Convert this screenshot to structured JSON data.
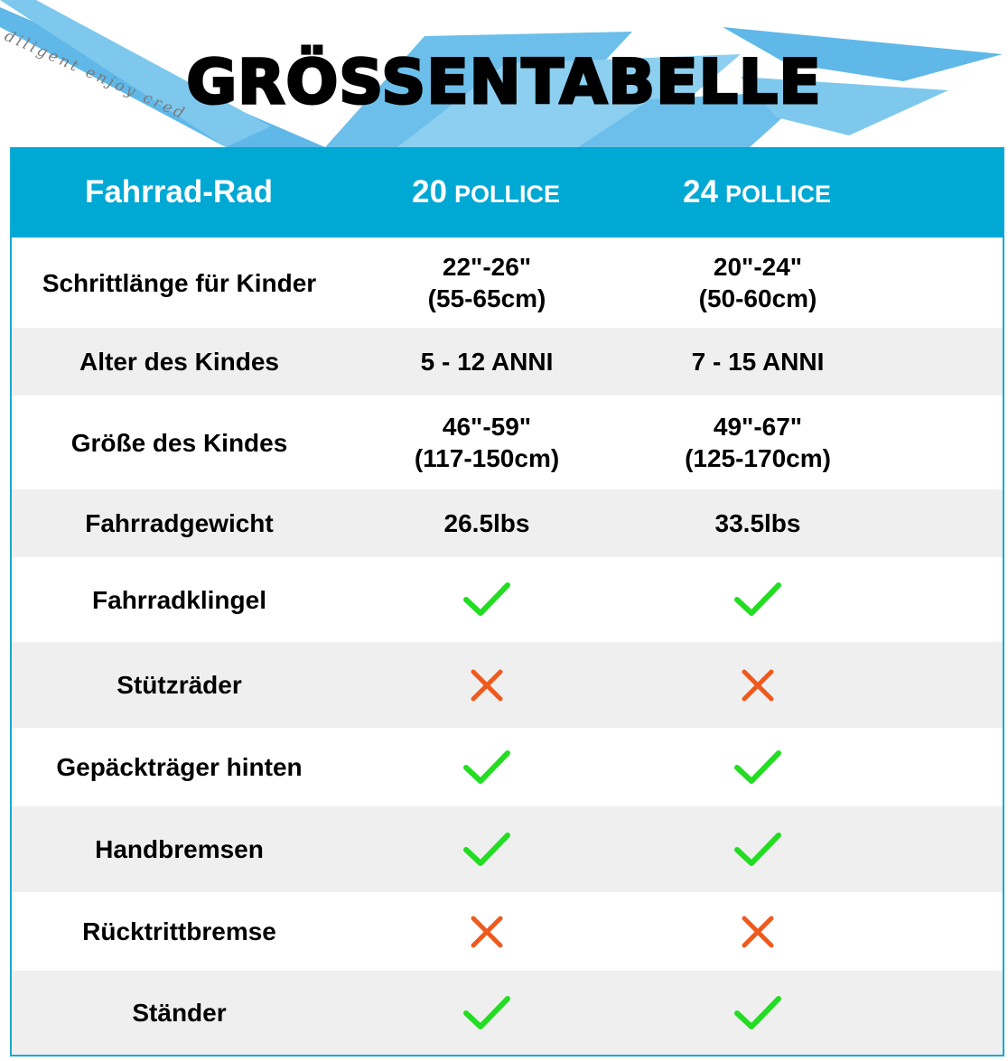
{
  "header": {
    "title": "GRÖSSENTABELLE",
    "tagline": "diligent enjoy cred"
  },
  "colors": {
    "accent": "#00a8d4",
    "check": "#22dd22",
    "cross": "#ee5a1e",
    "stripe": "#efefef"
  },
  "table": {
    "headers": {
      "feature": "Fahrrad-Rad",
      "col1_num": "20",
      "col1_unit": "POLLICE",
      "col2_num": "24",
      "col2_unit": "POLLICE"
    },
    "rows": [
      {
        "label": "Schrittlänge für Kinder",
        "v1a": "22\"-26\"",
        "v1b": "(55-65cm)",
        "v2a": "20\"-24\"",
        "v2b": "(50-60cm)"
      },
      {
        "label": "Alter des Kindes",
        "v1": "5 - 12 ANNI",
        "v2": "7 - 15 ANNI"
      },
      {
        "label": "Größe des Kindes",
        "v1a": "46\"-59\"",
        "v1b": "(117-150cm)",
        "v2a": "49\"-67\"",
        "v2b": "(125-170cm)"
      },
      {
        "label": "Fahrradgewicht",
        "v1": "26.5lbs",
        "v2": "33.5lbs"
      },
      {
        "label": "Fahrradklingel",
        "v1_icon": "check-icon",
        "v2_icon": "check-icon"
      },
      {
        "label": "Stützräder",
        "v1_icon": "cross-icon",
        "v2_icon": "cross-icon"
      },
      {
        "label": "Gepäckträger hinten",
        "v1_icon": "check-icon",
        "v2_icon": "check-icon"
      },
      {
        "label": "Handbremsen",
        "v1_icon": "check-icon",
        "v2_icon": "check-icon"
      },
      {
        "label": "Rücktrittbremse",
        "v1_icon": "cross-icon",
        "v2_icon": "cross-icon"
      },
      {
        "label": "Ständer",
        "v1_icon": "check-icon",
        "v2_icon": "check-icon"
      }
    ]
  }
}
